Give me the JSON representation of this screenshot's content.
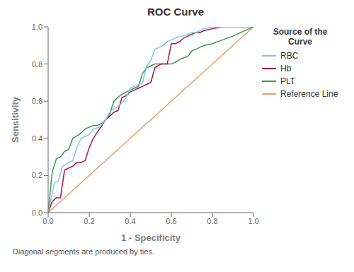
{
  "chart_data": {
    "type": "line",
    "title": "ROC Curve",
    "x_label": "1 - Specificity",
    "y_label": "Sensitivity",
    "annotations": [
      "Diagonal segments are produced by ties."
    ],
    "legend_title": "Source of the\nCurve",
    "legend": "right",
    "grid": false,
    "xlim": [
      0.0,
      1.0
    ],
    "ylim": [
      0.0,
      1.0
    ],
    "xticks": [
      {
        "value": 0.0,
        "label": "0.0"
      },
      0.2,
      0.4,
      0.6,
      0.8,
      {
        "value": 1.0,
        "label": "1.0"
      }
    ],
    "yticks": [
      {
        "value": 0.0,
        "label": "0.0"
      },
      0.2,
      0.4,
      0.6,
      0.8,
      {
        "value": 1.0,
        "label": "1.0"
      }
    ],
    "series": [
      {
        "name": "RBC",
        "color": "#7ec8e3",
        "x": [
          0.0,
          0.03,
          0.05,
          0.07,
          0.09,
          0.1,
          0.12,
          0.14,
          0.16,
          0.18,
          0.2,
          0.22,
          0.25,
          0.28,
          0.3,
          0.32,
          0.34,
          0.36,
          0.38,
          0.4,
          0.42,
          0.44,
          0.46,
          0.48,
          0.5,
          0.52,
          0.54,
          0.56,
          0.58,
          0.6,
          0.62,
          0.65,
          0.68,
          0.7,
          0.72,
          0.74,
          0.76,
          0.8,
          0.85,
          0.9,
          1.0
        ],
        "values": [
          0.0,
          0.16,
          0.17,
          0.25,
          0.26,
          0.27,
          0.28,
          0.35,
          0.4,
          0.41,
          0.42,
          0.45,
          0.46,
          0.5,
          0.54,
          0.56,
          0.57,
          0.59,
          0.62,
          0.67,
          0.68,
          0.69,
          0.7,
          0.79,
          0.82,
          0.88,
          0.89,
          0.9,
          0.92,
          0.93,
          0.94,
          0.95,
          0.96,
          0.97,
          0.97,
          0.98,
          0.99,
          1.0,
          1.0,
          1.0,
          1.0
        ]
      },
      {
        "name": "Hb",
        "color": "#b01040",
        "x": [
          0.0,
          0.02,
          0.04,
          0.06,
          0.08,
          0.1,
          0.12,
          0.14,
          0.16,
          0.18,
          0.2,
          0.22,
          0.25,
          0.28,
          0.3,
          0.32,
          0.34,
          0.36,
          0.38,
          0.4,
          0.42,
          0.44,
          0.46,
          0.48,
          0.5,
          0.52,
          0.55,
          0.58,
          0.6,
          0.62,
          0.64,
          0.66,
          0.68,
          0.7,
          0.72,
          0.74,
          0.76,
          0.8,
          0.85,
          0.9,
          1.0
        ],
        "values": [
          0.0,
          0.06,
          0.08,
          0.08,
          0.23,
          0.24,
          0.25,
          0.27,
          0.27,
          0.28,
          0.35,
          0.4,
          0.45,
          0.5,
          0.52,
          0.54,
          0.55,
          0.62,
          0.63,
          0.65,
          0.66,
          0.67,
          0.68,
          0.69,
          0.7,
          0.78,
          0.8,
          0.8,
          0.91,
          0.91,
          0.92,
          0.94,
          0.95,
          0.96,
          0.97,
          0.97,
          0.98,
          0.99,
          1.0,
          1.0,
          1.0
        ]
      },
      {
        "name": "PLT",
        "color": "#3a9a4a",
        "x": [
          0.0,
          0.02,
          0.04,
          0.06,
          0.08,
          0.1,
          0.12,
          0.15,
          0.18,
          0.2,
          0.22,
          0.24,
          0.26,
          0.28,
          0.3,
          0.32,
          0.35,
          0.38,
          0.4,
          0.42,
          0.44,
          0.46,
          0.48,
          0.5,
          0.52,
          0.55,
          0.58,
          0.6,
          0.62,
          0.65,
          0.68,
          0.7,
          0.72,
          0.74,
          0.76,
          0.8,
          0.85,
          0.9,
          1.0
        ],
        "values": [
          0.0,
          0.22,
          0.29,
          0.3,
          0.33,
          0.34,
          0.4,
          0.42,
          0.45,
          0.46,
          0.47,
          0.47,
          0.48,
          0.5,
          0.53,
          0.6,
          0.63,
          0.65,
          0.66,
          0.67,
          0.68,
          0.75,
          0.78,
          0.79,
          0.8,
          0.8,
          0.8,
          0.8,
          0.81,
          0.83,
          0.84,
          0.87,
          0.88,
          0.89,
          0.9,
          0.91,
          0.93,
          0.95,
          1.0
        ]
      },
      {
        "name": "Reference Line",
        "color": "#e8a06a",
        "x": [
          0,
          1
        ],
        "values": [
          0,
          1
        ]
      }
    ]
  }
}
